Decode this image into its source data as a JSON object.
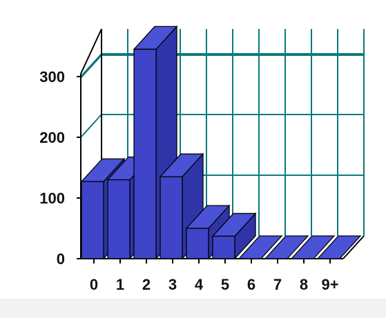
{
  "chart_data": {
    "type": "bar",
    "title": "",
    "xlabel": "",
    "ylabel": "",
    "categories": [
      "0",
      "1",
      "2",
      "3",
      "4",
      "5",
      "6",
      "7",
      "8",
      "9+"
    ],
    "values": [
      127,
      130,
      345,
      135,
      50,
      37,
      0,
      0,
      0,
      0
    ],
    "yticks": [
      "0",
      "100",
      "200",
      "300"
    ],
    "ylim": [
      0,
      380
    ],
    "grid": true,
    "three_d": true
  },
  "colors": {
    "bar_front": "#3f44c8",
    "bar_top": "#4a52d6",
    "bar_side": "#2f35a8",
    "grid": "#0a7a7a",
    "axis": "#000000"
  }
}
